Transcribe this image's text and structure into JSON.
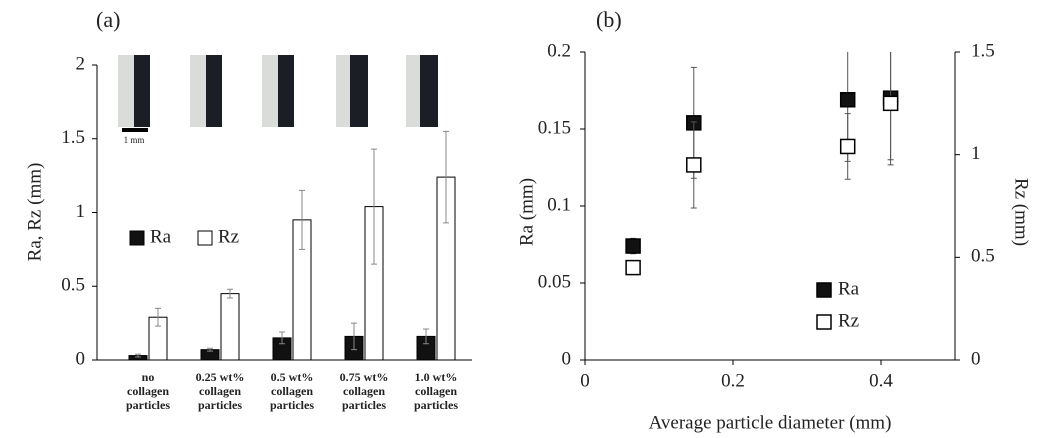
{
  "chart_data": [
    {
      "type": "bar",
      "panel_label": "(a)",
      "y_label": "Ra, Rz (mm)",
      "scale_label": "1 mm",
      "categories": [
        [
          "no",
          "collagen",
          "particles"
        ],
        [
          "0.25 wt%",
          "collagen",
          "particles"
        ],
        [
          "0.5 wt%",
          "collagen",
          "particles"
        ],
        [
          "0.75 wt%",
          "collagen",
          "particles"
        ],
        [
          "1.0 wt%",
          "collagen",
          "particles"
        ]
      ],
      "series": [
        {
          "name": "Ra",
          "color": "#111111",
          "values": [
            0.03,
            0.07,
            0.15,
            0.16,
            0.16
          ],
          "errors": [
            0.01,
            0.01,
            0.04,
            0.09,
            0.05
          ]
        },
        {
          "name": "Rz",
          "color": "#ffffff",
          "values": [
            0.29,
            0.45,
            0.95,
            1.04,
            1.24
          ],
          "errors": [
            0.06,
            0.03,
            0.2,
            0.39,
            0.31
          ]
        }
      ],
      "ylim": [
        0,
        2
      ],
      "yticks": [
        0,
        0.5,
        1,
        1.5,
        2
      ]
    },
    {
      "type": "scatter",
      "panel_label": "(b)",
      "x_label": "Average particle diameter (mm)",
      "y_label": "Ra (mm)",
      "y2_label": "Rz (mm)",
      "series": [
        {
          "name": "Ra",
          "color": "#111111",
          "x": [
            0.065,
            0.147,
            0.355,
            0.413
          ],
          "values": [
            0.074,
            0.154,
            0.169,
            0.17
          ],
          "errors": [
            0.005,
            0.036,
            0.04,
            0.04
          ]
        },
        {
          "name": "Rz",
          "color": "#ffffff",
          "axis": "y2",
          "x": [
            0.065,
            0.147,
            0.355,
            0.413
          ],
          "values": [
            0.45,
            0.95,
            1.04,
            1.25
          ],
          "errors": [
            0.01,
            0.21,
            0.16,
            0.3
          ]
        }
      ],
      "xlim": [
        0,
        0.5
      ],
      "xticks": [
        0,
        0.2,
        0.4
      ],
      "ylim": [
        0,
        0.2
      ],
      "yticks": [
        0,
        0.05,
        0.1,
        0.15,
        0.2
      ],
      "y2lim": [
        0,
        1.5
      ],
      "y2ticks": [
        0,
        0.5,
        1,
        1.5
      ]
    }
  ]
}
